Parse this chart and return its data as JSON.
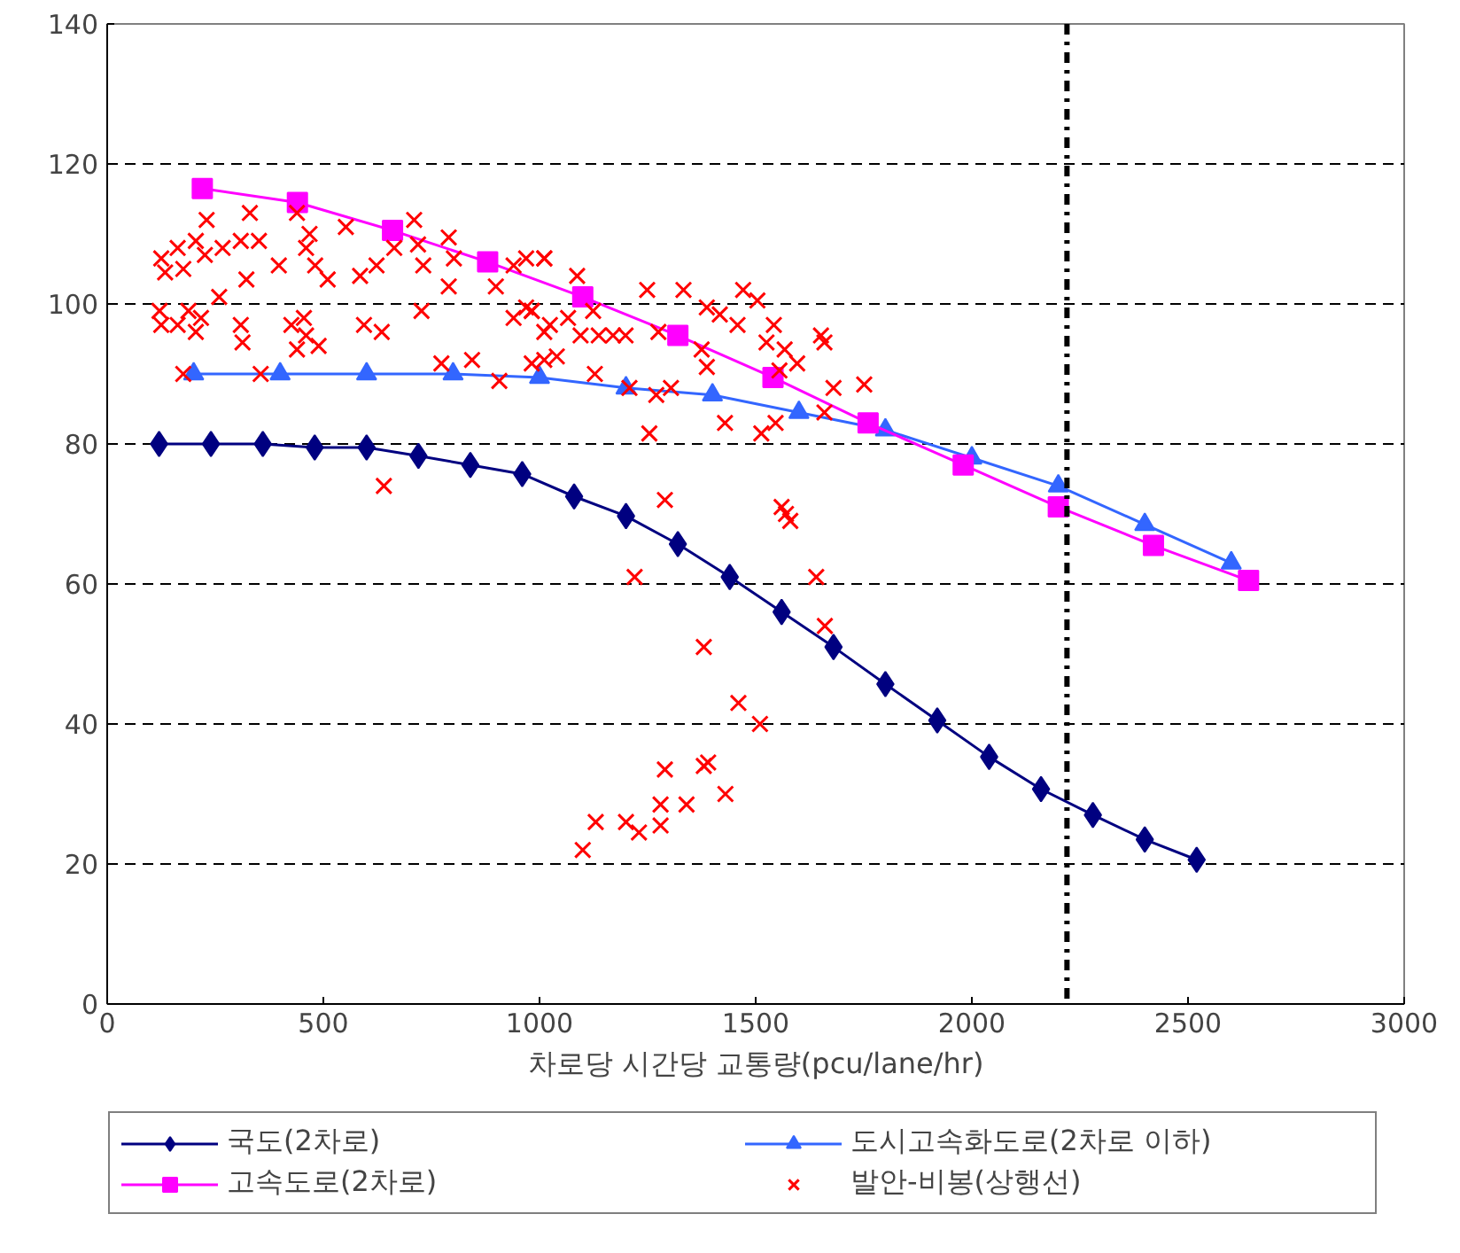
{
  "chart_data": {
    "type": "line",
    "xlabel": "차로당 시간당 교통량(pcu/lane/hr)",
    "xlim": [
      0,
      3000
    ],
    "xticks": [
      0,
      500,
      1000,
      1500,
      2000,
      2500,
      3000
    ],
    "ylim": [
      0,
      140
    ],
    "yticks": [
      0,
      20,
      40,
      60,
      80,
      100,
      120,
      140
    ],
    "grid": "y",
    "legend": "bottom",
    "ref_lines": [
      {
        "axis": "x",
        "value": 2220,
        "color": "#000000",
        "line_style": "dashdot"
      }
    ],
    "series": [
      {
        "name": "국도(2차로)",
        "marker": "diamond",
        "color": "#000080",
        "x": [
          120,
          240,
          360,
          480,
          600,
          720,
          840,
          960,
          1080,
          1200,
          1320,
          1440,
          1560,
          1680,
          1800,
          1920,
          2040,
          2160,
          2280,
          2400,
          2520
        ],
        "values": [
          80,
          80,
          80,
          79.5,
          79.5,
          78.3,
          77,
          75.7,
          72.5,
          69.7,
          65.7,
          61,
          56,
          51,
          45.7,
          40.5,
          35.3,
          30.7,
          27,
          23.5,
          20.6
        ]
      },
      {
        "name": "도시고속화도로(2차로 이하)",
        "marker": "triangle",
        "color": "#3366ff",
        "x": [
          200,
          400,
          600,
          800,
          1000,
          1200,
          1400,
          1600,
          1800,
          2000,
          2200,
          2400,
          2600
        ],
        "values": [
          90,
          90,
          90,
          90,
          89.5,
          88,
          87,
          84.5,
          82,
          78,
          74,
          68.5,
          63
        ]
      },
      {
        "name": "고속도로(2차로)",
        "marker": "square",
        "color": "#ff00ff",
        "x": [
          220,
          440,
          660,
          880,
          1100,
          1320,
          1540,
          1760,
          1980,
          2200,
          2420,
          2640
        ],
        "values": [
          116.5,
          114.5,
          110.5,
          106,
          101,
          95.5,
          89.5,
          83,
          77,
          71,
          65.5,
          60.5
        ]
      },
      {
        "name": "발안-비봉(상행선)",
        "type": "scatter",
        "marker": "cross",
        "color": "#ff0000",
        "x": [
          1100,
          1130,
          1200,
          1230,
          1280,
          1280,
          1290,
          1340,
          1380,
          1390,
          1430,
          1460,
          1510,
          1220,
          1380,
          1290,
          1560,
          1580,
          1640,
          1660,
          1570,
          640,
          125,
          134,
          121,
          125,
          163,
          176,
          188,
          163,
          176,
          205,
          230,
          226,
          217,
          205,
          267,
          259,
          309,
          330,
          322,
          309,
          313,
          355,
          351,
          397,
          426,
          439,
          468,
          460,
          481,
          455,
          460,
          489,
          439,
          510,
          552,
          585,
          623,
          594,
          635,
          664,
          710,
          719,
          731,
          727,
          790,
          790,
          802,
          773,
          844,
          907,
          899,
          940,
          982,
          940,
          1011,
          969,
          982,
          1011,
          1040,
          969,
          1011,
          1087,
          982,
          1024,
          1066,
          1011,
          1124,
          1137,
          1170,
          1095,
          1128,
          1199,
          1249,
          1333,
          1387,
          1417,
          1471,
          1504,
          1275,
          1375,
          1387,
          1458,
          1542,
          1525,
          1567,
          1596,
          1651,
          1659,
          1555,
          1208,
          1270,
          1304,
          1680,
          1751,
          1254,
          1429,
          1513,
          1546,
          1659
        ],
        "values": [
          22,
          26,
          26,
          24.5,
          25.5,
          28.5,
          33.5,
          28.5,
          34,
          34.5,
          30,
          43,
          40,
          61,
          51,
          72,
          71,
          69,
          61,
          54,
          70,
          74,
          106.5,
          104.5,
          99,
          97,
          108,
          105,
          99,
          97,
          90,
          109,
          112,
          107,
          98,
          96,
          108,
          101,
          109,
          113,
          103.5,
          97,
          94.5,
          90,
          109,
          105.5,
          97,
          113,
          110,
          108,
          105.5,
          98,
          95.5,
          94,
          93.5,
          103.5,
          111,
          104,
          105.5,
          97,
          96,
          108,
          112,
          108.5,
          105.5,
          99,
          102.5,
          109.5,
          106.5,
          91.5,
          92,
          89,
          102.5,
          105.5,
          99,
          98,
          96,
          99.5,
          91.5,
          106.5,
          92.5,
          106.5,
          106.5,
          104,
          99,
          97,
          98,
          92,
          99,
          95.5,
          95.5,
          95.5,
          90,
          95.5,
          102,
          102,
          99.5,
          98.5,
          102,
          100.5,
          96,
          93.5,
          91,
          97,
          97,
          94.5,
          93.5,
          91.5,
          95.5,
          94.5,
          90.5,
          88,
          87,
          88,
          88,
          88.5,
          81.5,
          83,
          81.5,
          83,
          84.5
        ]
      }
    ]
  }
}
